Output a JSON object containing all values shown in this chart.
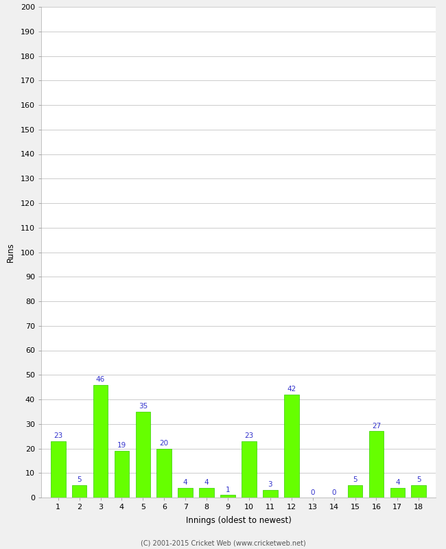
{
  "xlabel": "Innings (oldest to newest)",
  "ylabel": "Runs",
  "innings": [
    1,
    2,
    3,
    4,
    5,
    6,
    7,
    8,
    9,
    10,
    11,
    12,
    13,
    14,
    15,
    16,
    17,
    18
  ],
  "values": [
    23,
    5,
    46,
    19,
    35,
    20,
    4,
    4,
    1,
    23,
    3,
    42,
    0,
    0,
    5,
    27,
    4,
    5
  ],
  "bar_color": "#66ff00",
  "bar_edge_color": "#33cc00",
  "label_color": "#3333cc",
  "ylim": [
    0,
    200
  ],
  "ytick_step": 10,
  "background_color": "#f0f0f0",
  "plot_bg_color": "#ffffff",
  "grid_color": "#cccccc",
  "footer": "(C) 2001-2015 Cricket Web (www.cricketweb.net)"
}
